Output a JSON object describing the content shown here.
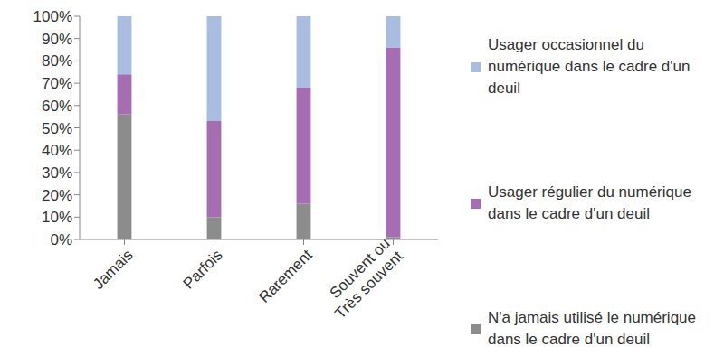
{
  "chart_data": {
    "type": "bar",
    "stacked": true,
    "categories": [
      "Jamais",
      "Parfois",
      "Rarement",
      "Souvent ou\nTrès souvent"
    ],
    "series": [
      {
        "name": "N'a jamais utilisé le numérique dans le cadre d'un deuil",
        "color": "#8c8c8c",
        "values": [
          56,
          10,
          16,
          1
        ]
      },
      {
        "name": "Usager régulier du numérique dans le cadre d'un deuil",
        "color": "#a66db3",
        "values": [
          18,
          43,
          52,
          85
        ]
      },
      {
        "name": "Usager occasionnel du numérique dans le cadre d'un deuil",
        "color": "#a9bde0",
        "values": [
          26,
          47,
          32,
          14
        ]
      }
    ],
    "ylim": [
      0,
      100
    ],
    "yticks": [
      {
        "value": 0,
        "label": "0%"
      },
      {
        "value": 10,
        "label": "10%"
      },
      {
        "value": 20,
        "label": "20%"
      },
      {
        "value": 30,
        "label": "30%"
      },
      {
        "value": 40,
        "label": "40%"
      },
      {
        "value": 50,
        "label": "50%"
      },
      {
        "value": 60,
        "label": "60%"
      },
      {
        "value": 70,
        "label": "70%"
      },
      {
        "value": 80,
        "label": "80%"
      },
      {
        "value": 90,
        "label": "90%"
      },
      {
        "value": 100,
        "label": "100%"
      }
    ],
    "grid": false,
    "legend": "right"
  }
}
